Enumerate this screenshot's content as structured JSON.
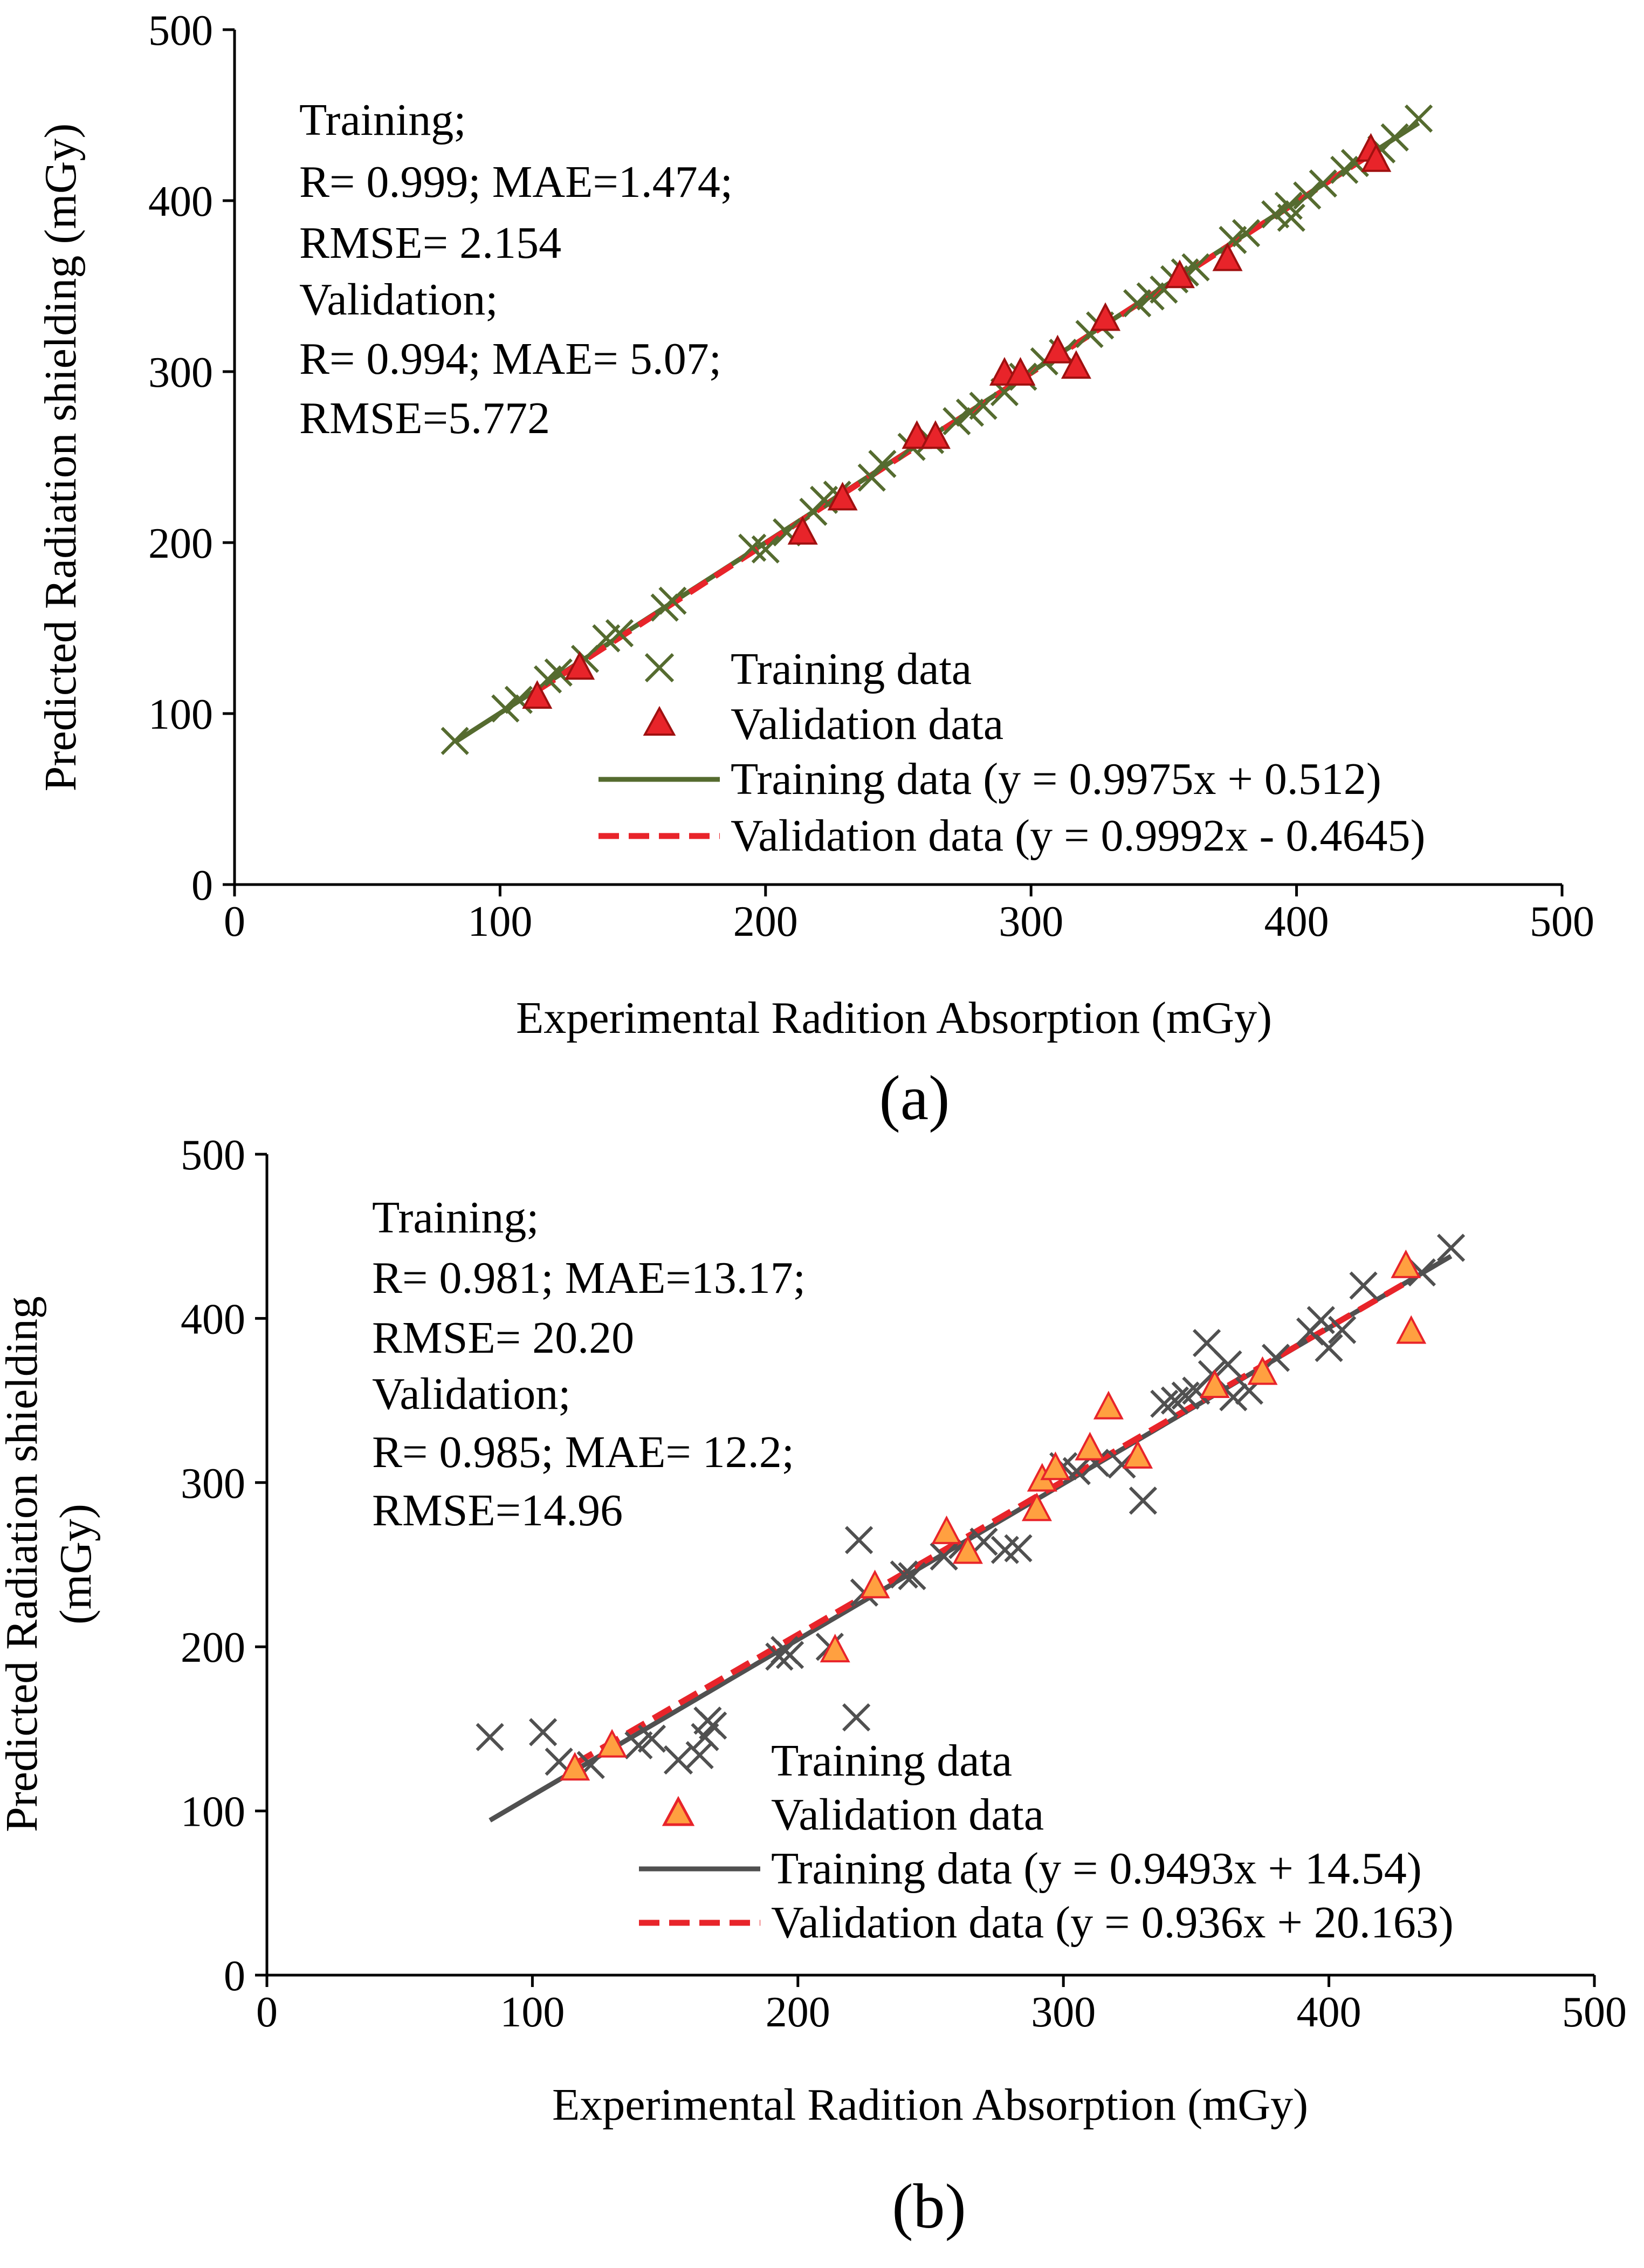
{
  "chart_data": [
    {
      "type": "scatter",
      "panel_label": "(a)",
      "xlabel": "Experimental Radition Absorption (mGy)",
      "ylabel_lines": [
        "Predicted Radiation shielding (mGy)"
      ],
      "xlim": [
        0,
        500
      ],
      "ylim": [
        0,
        500
      ],
      "xticks": [
        "0",
        "100",
        "200",
        "300",
        "400",
        "500"
      ],
      "yticks": [
        "0",
        "100",
        "200",
        "300",
        "400",
        "500"
      ],
      "stats_text": [
        "Training;",
        "R= 0.999; MAE=1.474;",
        "RMSE= 2.154",
        "Validation;",
        "R= 0.994; MAE= 5.07;",
        "RMSE=5.772"
      ],
      "legend": [
        {
          "kind": "x-marker",
          "label": "Training data"
        },
        {
          "kind": "triangle-marker",
          "label": "Validation data"
        },
        {
          "kind": "solid-line",
          "label": "Training data (y = 0.9975x + 0.512)"
        },
        {
          "kind": "dashed-line",
          "label": "Validation data (y = 0.9992x - 0.4645)"
        }
      ],
      "training_color": "#556b2f",
      "validation_color": "#e8242a",
      "validation_fill": "#e8242a",
      "training_points": [
        [
          83,
          84
        ],
        [
          102,
          103
        ],
        [
          107,
          108
        ],
        [
          118,
          120
        ],
        [
          122,
          124
        ],
        [
          132,
          132
        ],
        [
          140,
          144
        ],
        [
          145,
          147
        ],
        [
          162,
          162
        ],
        [
          165,
          166
        ],
        [
          195,
          197
        ],
        [
          200,
          196
        ],
        [
          208,
          206
        ],
        [
          218,
          218
        ],
        [
          222,
          225
        ],
        [
          227,
          228
        ],
        [
          240,
          238
        ],
        [
          244,
          246
        ],
        [
          255,
          256
        ],
        [
          262,
          260
        ],
        [
          272,
          271
        ],
        [
          277,
          276
        ],
        [
          282,
          280
        ],
        [
          290,
          288
        ],
        [
          297,
          297
        ],
        [
          305,
          306
        ],
        [
          312,
          311
        ],
        [
          322,
          322
        ],
        [
          326,
          327
        ],
        [
          340,
          340
        ],
        [
          345,
          344
        ],
        [
          350,
          348
        ],
        [
          354,
          354
        ],
        [
          358,
          358
        ],
        [
          362,
          361
        ],
        [
          376,
          377
        ],
        [
          381,
          381
        ],
        [
          392,
          392
        ],
        [
          397,
          397
        ],
        [
          398,
          390
        ],
        [
          404,
          403
        ],
        [
          410,
          410
        ],
        [
          418,
          418
        ],
        [
          422,
          422
        ],
        [
          432,
          430
        ],
        [
          437,
          437
        ],
        [
          446,
          448
        ]
      ],
      "validation_points": [
        [
          114,
          110
        ],
        [
          130,
          127
        ],
        [
          214,
          206
        ],
        [
          229,
          226
        ],
        [
          257,
          262
        ],
        [
          264,
          262
        ],
        [
          290,
          299
        ],
        [
          296,
          299
        ],
        [
          310,
          312
        ],
        [
          317,
          303
        ],
        [
          328,
          331
        ],
        [
          356,
          356
        ],
        [
          374,
          366
        ],
        [
          428,
          430
        ],
        [
          430,
          424
        ]
      ],
      "training_fit": {
        "slope": 0.9975,
        "intercept": 0.512,
        "x_range": [
          83,
          446
        ]
      },
      "validation_fit": {
        "slope": 0.9992,
        "intercept": -0.4645,
        "x_range": [
          114,
          430
        ]
      }
    },
    {
      "type": "scatter",
      "panel_label": "(b)",
      "xlabel": "Experimental Radition Absorption (mGy)",
      "ylabel_lines": [
        "Predicted Radiation shielding",
        "(mGy)"
      ],
      "xlim": [
        0,
        500
      ],
      "ylim": [
        0,
        500
      ],
      "xticks": [
        "0",
        "100",
        "200",
        "300",
        "400",
        "500"
      ],
      "yticks": [
        "0",
        "100",
        "200",
        "300",
        "400",
        "500"
      ],
      "stats_text": [
        "Training;",
        "R= 0.981; MAE=13.17;",
        "RMSE= 20.20",
        "Validation;",
        "R= 0.985; MAE= 12.2;",
        "RMSE=14.96"
      ],
      "legend": [
        {
          "kind": "x-marker",
          "label": "Training data"
        },
        {
          "kind": "triangle-marker",
          "label": "Validation data"
        },
        {
          "kind": "solid-line",
          "label": "Training data (y = 0.9493x + 14.54)"
        },
        {
          "kind": "dashed-line",
          "label": "Validation data (y = 0.936x + 20.163)"
        }
      ],
      "training_color": "#505050",
      "validation_color": "#e8242a",
      "validation_fill": "#ffa040",
      "training_points": [
        [
          84,
          145
        ],
        [
          104,
          148
        ],
        [
          110,
          130
        ],
        [
          122,
          128
        ],
        [
          140,
          140
        ],
        [
          145,
          144
        ],
        [
          163,
          134
        ],
        [
          165,
          145
        ],
        [
          166,
          155
        ],
        [
          168,
          152
        ],
        [
          193,
          194
        ],
        [
          195,
          198
        ],
        [
          197,
          195
        ],
        [
          212,
          200
        ],
        [
          222,
          157
        ],
        [
          223,
          265
        ],
        [
          225,
          233
        ],
        [
          240,
          244
        ],
        [
          243,
          243
        ],
        [
          255,
          255
        ],
        [
          262,
          262
        ],
        [
          270,
          264
        ],
        [
          278,
          259
        ],
        [
          283,
          260
        ],
        [
          300,
          310
        ],
        [
          305,
          307
        ],
        [
          312,
          312
        ],
        [
          322,
          311
        ],
        [
          330,
          289
        ],
        [
          338,
          348
        ],
        [
          342,
          350
        ],
        [
          346,
          353
        ],
        [
          350,
          356
        ],
        [
          354,
          385
        ],
        [
          356,
          366
        ],
        [
          362,
          372
        ],
        [
          364,
          352
        ],
        [
          370,
          356
        ],
        [
          380,
          376
        ],
        [
          393,
          392
        ],
        [
          397,
          399
        ],
        [
          400,
          382
        ],
        [
          405,
          393
        ],
        [
          413,
          420
        ],
        [
          435,
          428
        ],
        [
          446,
          443
        ]
      ],
      "validation_points": [
        [
          116,
          126
        ],
        [
          130,
          140
        ],
        [
          214,
          198
        ],
        [
          229,
          237
        ],
        [
          256,
          270
        ],
        [
          264,
          258
        ],
        [
          290,
          284
        ],
        [
          292,
          302
        ],
        [
          297,
          309
        ],
        [
          310,
          321
        ],
        [
          317,
          346
        ],
        [
          328,
          316
        ],
        [
          357,
          359
        ],
        [
          375,
          367
        ],
        [
          429,
          432
        ],
        [
          431,
          392
        ]
      ],
      "training_fit": {
        "slope": 0.9493,
        "intercept": 14.54,
        "x_range": [
          84,
          446
        ]
      },
      "validation_fit": {
        "slope": 0.936,
        "intercept": 20.163,
        "x_range": [
          116,
          431
        ]
      }
    }
  ]
}
